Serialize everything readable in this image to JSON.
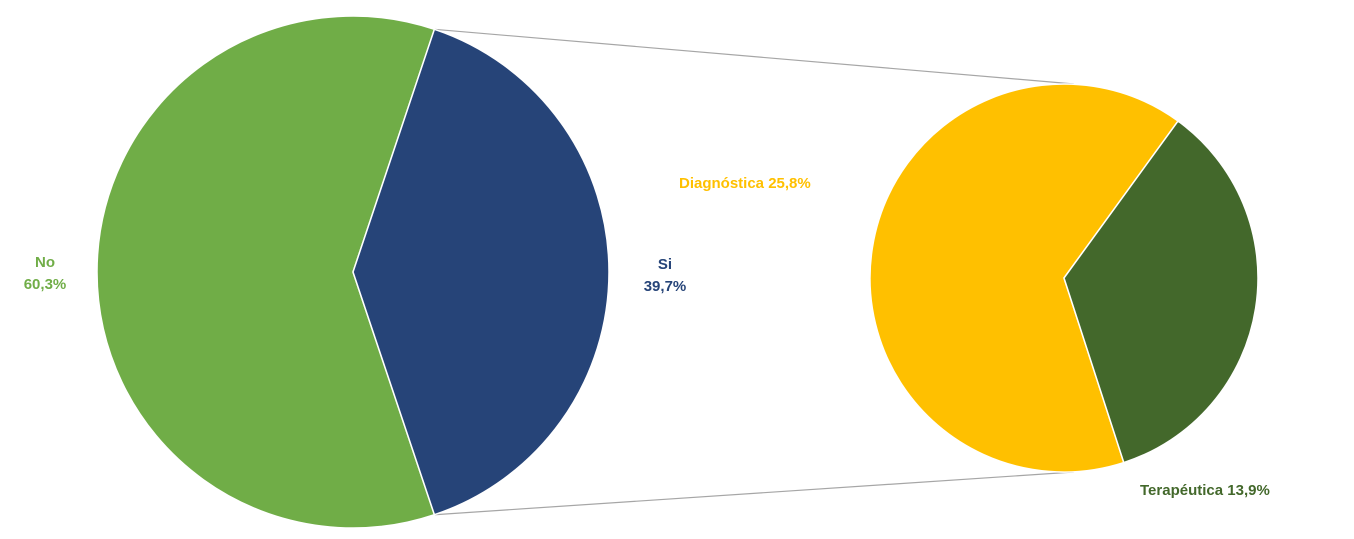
{
  "chart_data": {
    "type": "pie",
    "subtype": "pie-of-pie",
    "main_pie": {
      "slices": [
        {
          "label": "No",
          "value": 60.3,
          "value_text": "60,3%",
          "color": "#70AD47"
        },
        {
          "label": "Si",
          "value": 39.7,
          "value_text": "39,7%",
          "color": "#264478"
        }
      ]
    },
    "secondary_pie": {
      "breakdown_of": "Si",
      "slices": [
        {
          "label": "Diagnóstica",
          "value": 25.8,
          "value_text": "25,8%",
          "color": "#FFC000"
        },
        {
          "label": "Terapéutica",
          "value": 13.9,
          "value_text": "13,9%",
          "color": "#43682B"
        }
      ]
    },
    "connector_color": "#A6A6A6",
    "legend": "none"
  }
}
